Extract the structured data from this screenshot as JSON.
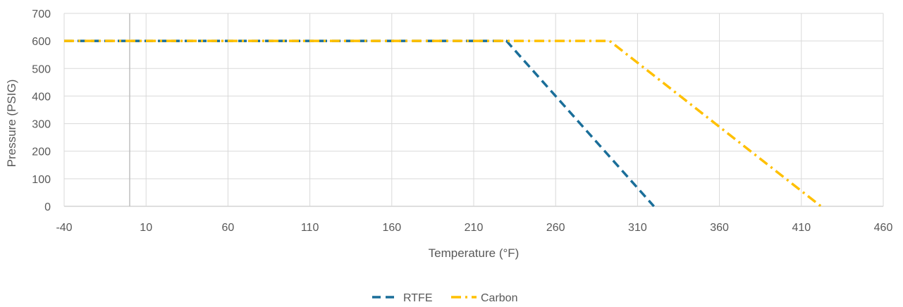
{
  "chart_data": {
    "type": "line",
    "title": "",
    "xlabel": "Temperature (°F)",
    "ylabel": "Pressure (PSIG)",
    "xlim": [
      -40,
      460
    ],
    "ylim": [
      0,
      700
    ],
    "x_ticks": [
      -40,
      10,
      60,
      110,
      160,
      210,
      260,
      310,
      360,
      410,
      460
    ],
    "y_ticks": [
      0,
      100,
      200,
      300,
      400,
      500,
      600,
      700
    ],
    "x_tick_labels": [
      "-40",
      "10",
      "60",
      "110",
      "160",
      "210",
      "260",
      "310",
      "360",
      "410",
      "460"
    ],
    "y_tick_labels": [
      "0",
      "100",
      "200",
      "300",
      "400",
      "500",
      "600",
      "700"
    ],
    "grid": true,
    "zero_line_x": 0,
    "legend_position": "bottom",
    "series": [
      {
        "name": "RTFE",
        "color": "#1A6E99",
        "dash": "dashed",
        "points": [
          [
            -40,
            600
          ],
          [
            230,
            600
          ],
          [
            320,
            0
          ]
        ]
      },
      {
        "name": "Carbon",
        "color": "#FFC000",
        "dash": "dash-dot",
        "points": [
          [
            -40,
            600
          ],
          [
            293,
            600
          ],
          [
            422,
            0
          ]
        ]
      }
    ]
  }
}
